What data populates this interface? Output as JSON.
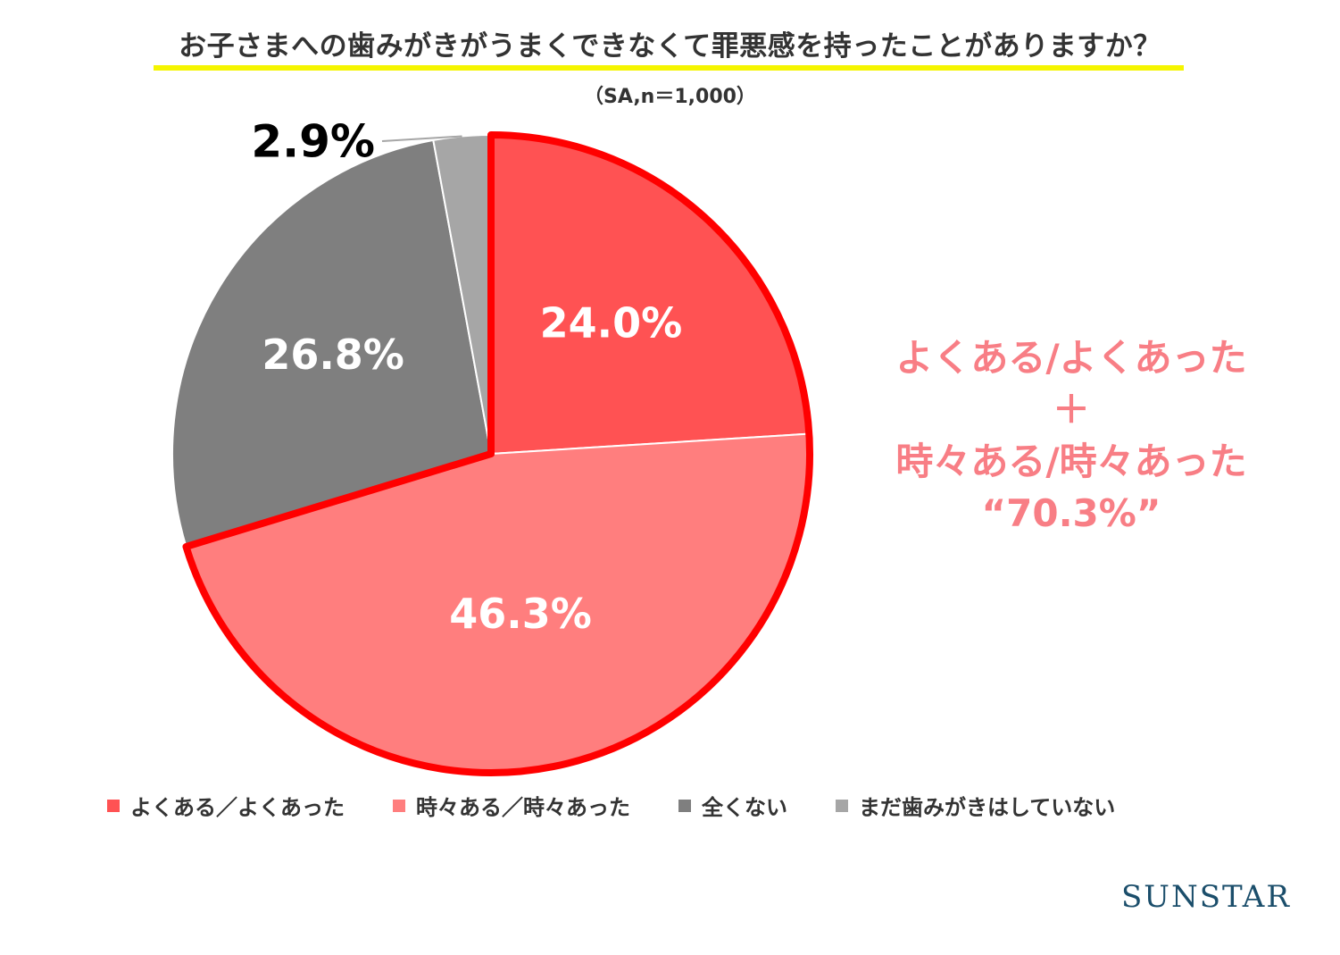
{
  "header": {
    "title": "お子さまへの歯みがきがうまくできなくて罪悪感を持ったことがありますか？",
    "subtitle": "（SA,n＝1,000）"
  },
  "callout": {
    "line1": "よくある/よくあった",
    "line2": "＋",
    "line3": "時々ある/時々あった",
    "line4": "“70.3%”"
  },
  "brand": {
    "logo_text": "SUNSTAR"
  },
  "chart_data": {
    "type": "pie",
    "title": "お子さまへの歯みがきがうまくできなくて罪悪感を持ったことがありますか？",
    "subtitle": "（SA,n＝1,000）",
    "start": "12 o'clock",
    "direction": "clockwise",
    "slices": [
      {
        "label": "よくある／よくあった",
        "value": 24.0,
        "display": "24.0%",
        "color": "#ff5253"
      },
      {
        "label": "時々ある／時々あった",
        "value": 46.3,
        "display": "46.3%",
        "color": "#ff7e7e"
      },
      {
        "label": "全くない",
        "value": 26.8,
        "display": "26.8%",
        "color": "#7f7f7f"
      },
      {
        "label": "まだ歯みがきはしていない",
        "value": 2.9,
        "display": "2.9%",
        "color": "#a6a6a6"
      }
    ],
    "highlight": {
      "slices": [
        0,
        1
      ],
      "outline_color": "#ff0000",
      "total_display": "70.3%"
    },
    "legend_position": "bottom"
  }
}
